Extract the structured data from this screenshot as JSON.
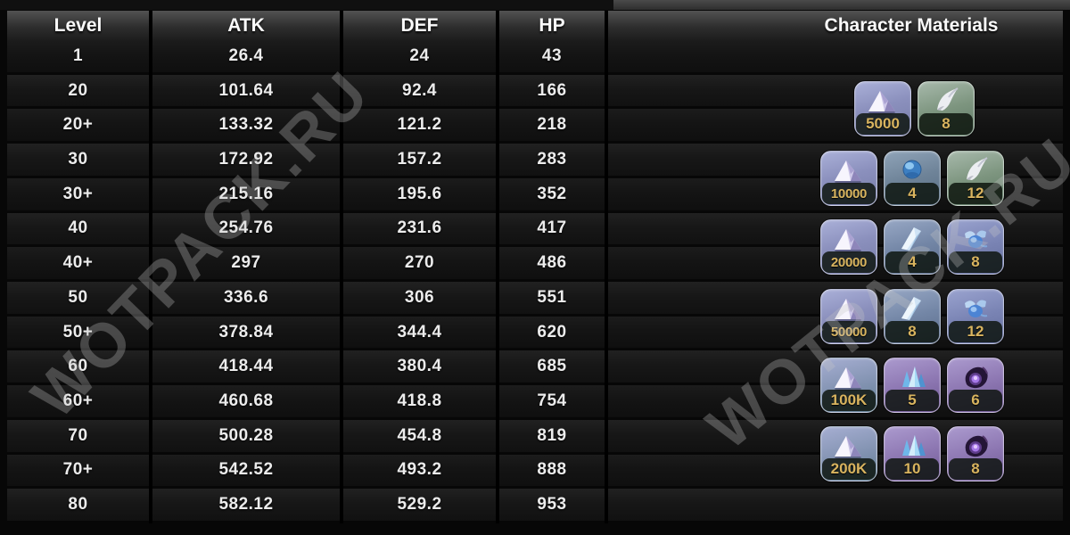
{
  "header": {
    "columns": [
      "Level",
      "ATK",
      "DEF",
      "HP",
      "Character Materials"
    ]
  },
  "stats_table": {
    "rows": [
      {
        "level": "1",
        "atk": "26.4",
        "def": "24",
        "hp": "43"
      },
      {
        "level": "20",
        "atk": "101.64",
        "def": "92.4",
        "hp": "166"
      },
      {
        "level": "20+",
        "atk": "133.32",
        "def": "121.2",
        "hp": "218"
      },
      {
        "level": "30",
        "atk": "172.92",
        "def": "157.2",
        "hp": "283"
      },
      {
        "level": "30+",
        "atk": "215.16",
        "def": "195.6",
        "hp": "352"
      },
      {
        "level": "40",
        "atk": "254.76",
        "def": "231.6",
        "hp": "417"
      },
      {
        "level": "40+",
        "atk": "297",
        "def": "270",
        "hp": "486"
      },
      {
        "level": "50",
        "atk": "336.6",
        "def": "306",
        "hp": "551"
      },
      {
        "level": "50+",
        "atk": "378.84",
        "def": "344.4",
        "hp": "620"
      },
      {
        "level": "60",
        "atk": "418.44",
        "def": "380.4",
        "hp": "685"
      },
      {
        "level": "60+",
        "atk": "460.68",
        "def": "418.8",
        "hp": "754"
      },
      {
        "level": "70",
        "atk": "500.28",
        "def": "454.8",
        "hp": "819"
      },
      {
        "level": "70+",
        "atk": "542.52",
        "def": "493.2",
        "hp": "888"
      },
      {
        "level": "80",
        "atk": "582.12",
        "def": "529.2",
        "hp": "953"
      }
    ]
  },
  "materials": [
    {
      "ascension": "20+",
      "items": [
        {
          "icon": "credits-icon",
          "qty": "5000",
          "bg": "periwinkle"
        },
        {
          "icon": "horn-icon",
          "qty": "8",
          "bg": "green"
        }
      ]
    },
    {
      "ascension": "30+",
      "items": [
        {
          "icon": "credits-icon",
          "qty": "10000",
          "bg": "periwinkle"
        },
        {
          "icon": "orb-icon",
          "qty": "4",
          "bg": "bluegrey"
        },
        {
          "icon": "horn-icon",
          "qty": "12",
          "bg": "green"
        }
      ]
    },
    {
      "ascension": "40+",
      "items": [
        {
          "icon": "credits-icon",
          "qty": "20000",
          "bg": "periwinkle"
        },
        {
          "icon": "shard-icon",
          "qty": "4",
          "bg": "slate"
        },
        {
          "icon": "beetle-icon",
          "qty": "8",
          "bg": "bluepurple"
        }
      ]
    },
    {
      "ascension": "50+",
      "items": [
        {
          "icon": "credits-icon",
          "qty": "50000",
          "bg": "periwinkle"
        },
        {
          "icon": "shard-icon",
          "qty": "8",
          "bg": "slate"
        },
        {
          "icon": "beetle-icon",
          "qty": "12",
          "bg": "bluepurple"
        }
      ]
    },
    {
      "ascension": "60+",
      "items": [
        {
          "icon": "credits-icon",
          "qty": "100K",
          "bg": "steel"
        },
        {
          "icon": "crystal-cluster-icon",
          "qty": "5",
          "bg": "purple"
        },
        {
          "icon": "dark-core-icon",
          "qty": "6",
          "bg": "purple"
        }
      ]
    },
    {
      "ascension": "70+",
      "items": [
        {
          "icon": "credits-icon",
          "qty": "200K",
          "bg": "steel"
        },
        {
          "icon": "crystal-cluster-icon",
          "qty": "10",
          "bg": "purple"
        },
        {
          "icon": "dark-core-icon",
          "qty": "8",
          "bg": "purple"
        }
      ]
    }
  ],
  "watermark": {
    "text": "WOTPACK.RU"
  },
  "colors": {
    "quantity_text": "#d9b45f",
    "header_bg_top": "#525252",
    "row_bg": "#161616",
    "grid_line": "#000000"
  }
}
